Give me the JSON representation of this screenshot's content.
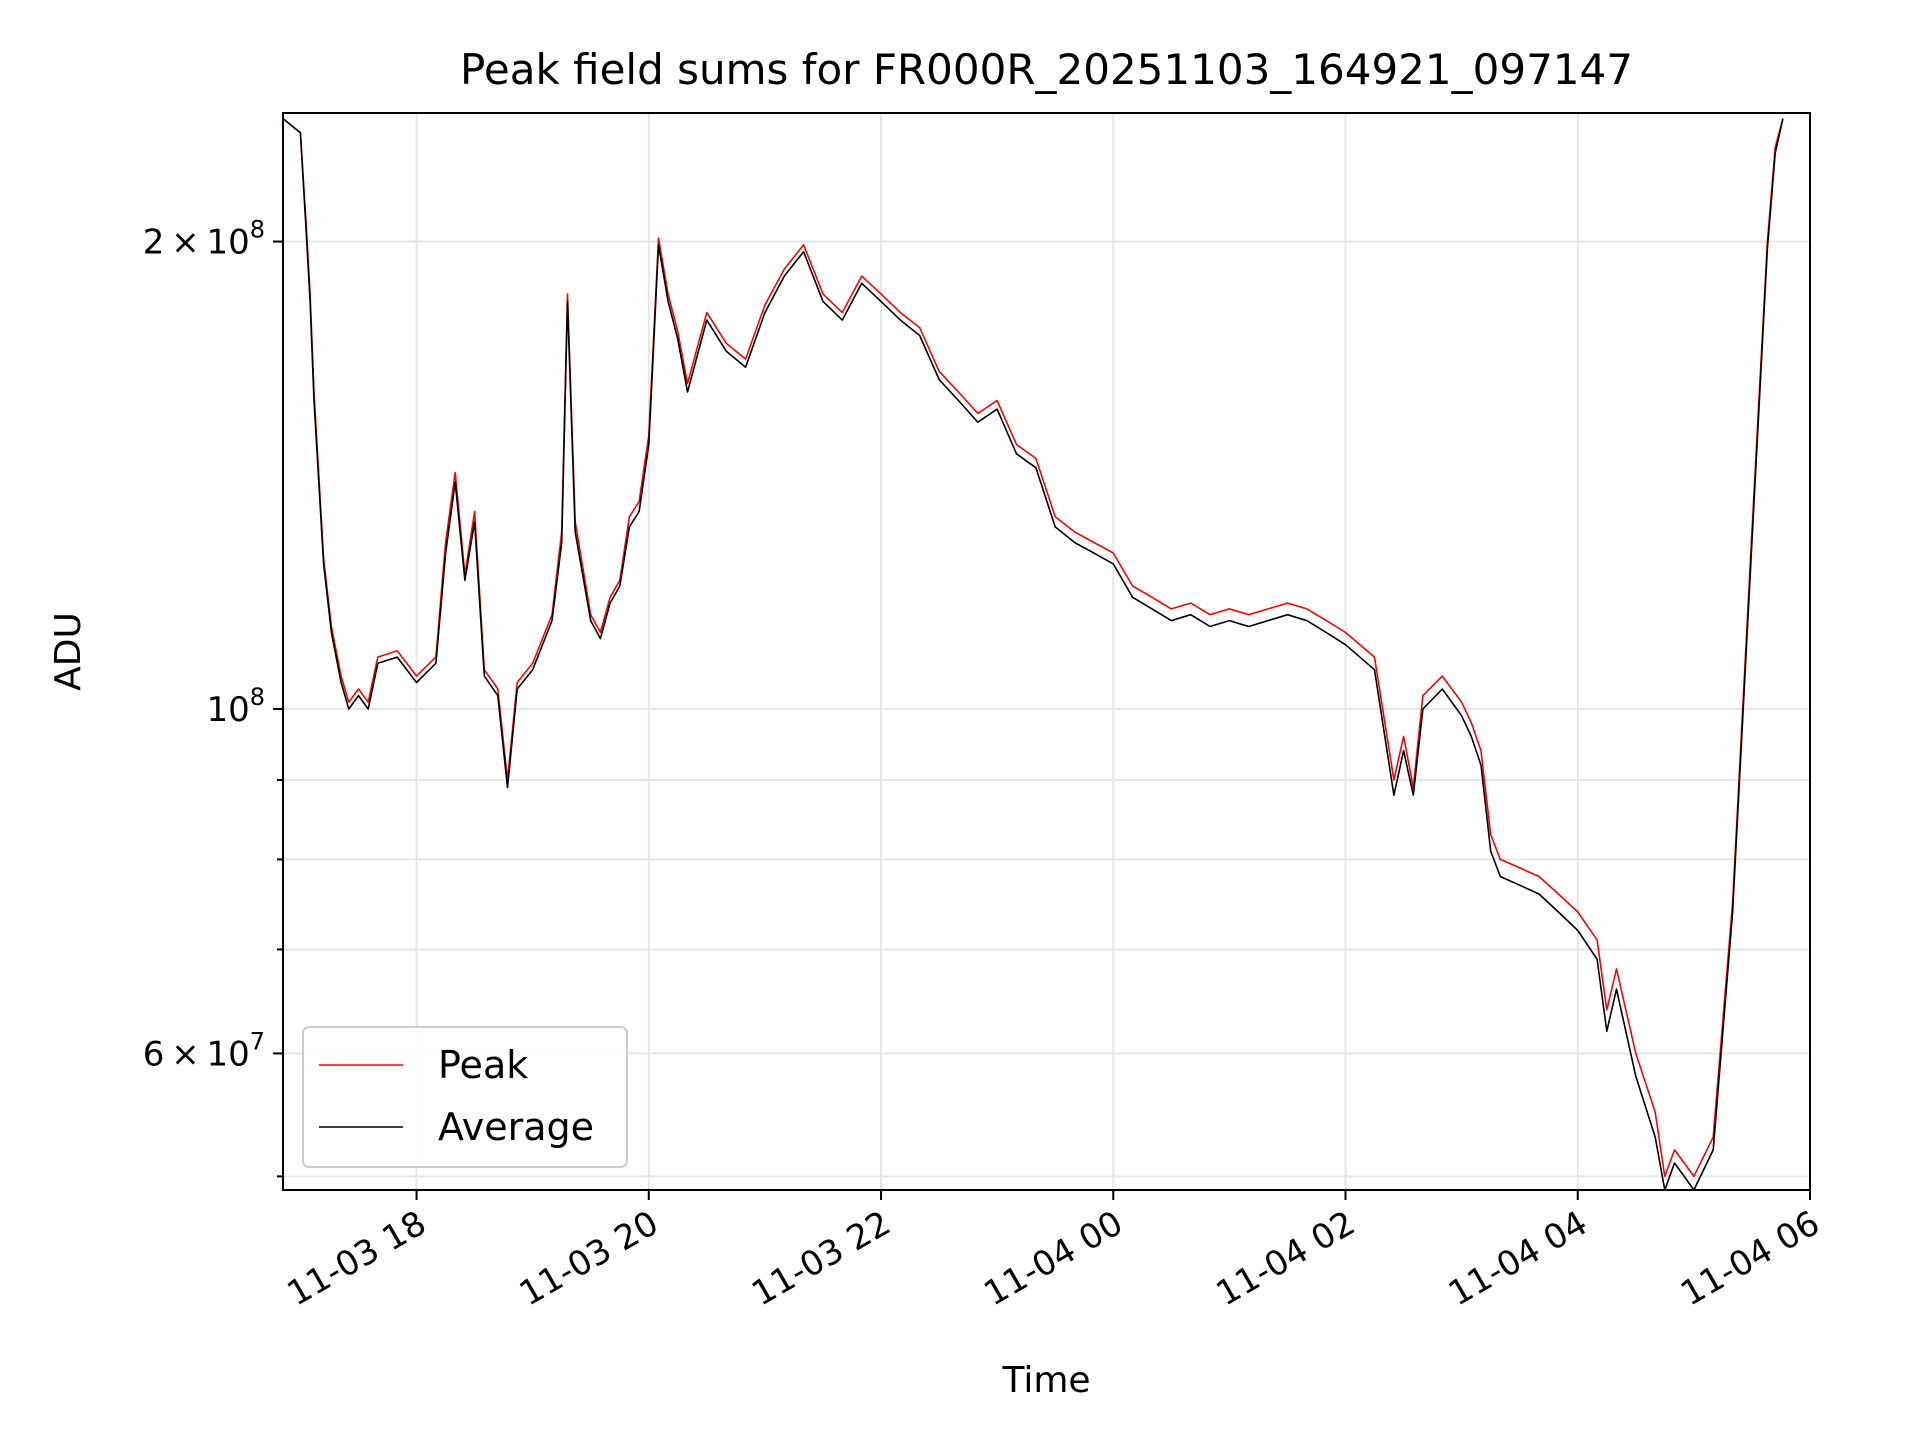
{
  "chart_data": {
    "type": "line",
    "title": "Peak field sums for FR000R_20251103_164921_097147",
    "xlabel": "Time",
    "ylabel": "ADU",
    "yscale": "log",
    "grid": true,
    "legend_position": "lower-left",
    "x_ticks": [
      "11-03 18",
      "11-03 20",
      "11-03 22",
      "11-04 00",
      "11-04 02",
      "11-04 04",
      "11-04 06"
    ],
    "y_major_ticks": [
      {
        "value": 200000000,
        "mantissa": "2",
        "base": "10",
        "exp": "8"
      },
      {
        "value": 100000000,
        "mantissa": "",
        "base": "10",
        "exp": "8"
      },
      {
        "value": 60000000,
        "mantissa": "6",
        "base": "10",
        "exp": "7"
      }
    ],
    "y_minor_ticks": [
      50000000,
      70000000,
      80000000,
      90000000
    ],
    "ylim": [
      49000000,
      242000000
    ],
    "xlim": [
      "2025-11-03 16:51",
      "2025-11-04 06:00"
    ],
    "series": [
      {
        "name": "Peak",
        "color": "#ff0000",
        "points": [
          [
            "2025-11-03 16:51",
            240000000
          ],
          [
            "2025-11-03 17:00",
            235000000
          ],
          [
            "2025-11-03 17:03",
            205000000
          ],
          [
            "2025-11-03 17:05",
            185000000
          ],
          [
            "2025-11-03 17:07",
            160000000
          ],
          [
            "2025-11-03 17:12",
            125000000
          ],
          [
            "2025-11-03 17:16",
            113000000
          ],
          [
            "2025-11-03 17:21",
            105000000
          ],
          [
            "2025-11-03 17:25",
            101000000
          ],
          [
            "2025-11-03 17:30",
            103000000
          ],
          [
            "2025-11-03 17:35",
            101000000
          ],
          [
            "2025-11-03 17:40",
            108000000
          ],
          [
            "2025-11-03 17:50",
            109000000
          ],
          [
            "2025-11-03 18:00",
            105000000
          ],
          [
            "2025-11-03 18:10",
            108000000
          ],
          [
            "2025-11-03 18:15",
            128000000
          ],
          [
            "2025-11-03 18:20",
            142000000
          ],
          [
            "2025-11-03 18:25",
            122000000
          ],
          [
            "2025-11-03 18:30",
            134000000
          ],
          [
            "2025-11-03 18:35",
            106000000
          ],
          [
            "2025-11-03 18:42",
            103000000
          ],
          [
            "2025-11-03 18:47",
            90000000
          ],
          [
            "2025-11-03 18:52",
            104000000
          ],
          [
            "2025-11-03 19:00",
            107000000
          ],
          [
            "2025-11-03 19:10",
            115000000
          ],
          [
            "2025-11-03 19:15",
            130000000
          ],
          [
            "2025-11-03 19:18",
            185000000
          ],
          [
            "2025-11-03 19:22",
            132000000
          ],
          [
            "2025-11-03 19:30",
            115000000
          ],
          [
            "2025-11-03 19:35",
            112000000
          ],
          [
            "2025-11-03 19:40",
            118000000
          ],
          [
            "2025-11-03 19:45",
            121000000
          ],
          [
            "2025-11-03 19:50",
            133000000
          ],
          [
            "2025-11-03 19:55",
            136000000
          ],
          [
            "2025-11-03 20:00",
            150000000
          ],
          [
            "2025-11-03 20:05",
            201000000
          ],
          [
            "2025-11-03 20:10",
            185000000
          ],
          [
            "2025-11-03 20:15",
            175000000
          ],
          [
            "2025-11-03 20:20",
            162000000
          ],
          [
            "2025-11-03 20:30",
            180000000
          ],
          [
            "2025-11-03 20:40",
            172000000
          ],
          [
            "2025-11-03 20:50",
            168000000
          ],
          [
            "2025-11-03 21:00",
            182000000
          ],
          [
            "2025-11-03 21:10",
            192000000
          ],
          [
            "2025-11-03 21:20",
            199000000
          ],
          [
            "2025-11-03 21:30",
            185000000
          ],
          [
            "2025-11-03 21:40",
            180000000
          ],
          [
            "2025-11-03 21:50",
            190000000
          ],
          [
            "2025-11-03 22:00",
            185000000
          ],
          [
            "2025-11-03 22:10",
            180000000
          ],
          [
            "2025-11-03 22:20",
            176000000
          ],
          [
            "2025-11-03 22:30",
            165000000
          ],
          [
            "2025-11-03 22:40",
            160000000
          ],
          [
            "2025-11-03 22:50",
            155000000
          ],
          [
            "2025-11-03 23:00",
            158000000
          ],
          [
            "2025-11-03 23:10",
            148000000
          ],
          [
            "2025-11-03 23:20",
            145000000
          ],
          [
            "2025-11-03 23:30",
            133000000
          ],
          [
            "2025-11-03 23:40",
            130000000
          ],
          [
            "2025-11-03 23:50",
            128000000
          ],
          [
            "2025-11-04 00:00",
            126000000
          ],
          [
            "2025-11-04 00:10",
            120000000
          ],
          [
            "2025-11-04 00:20",
            118000000
          ],
          [
            "2025-11-04 00:30",
            116000000
          ],
          [
            "2025-11-04 00:40",
            117000000
          ],
          [
            "2025-11-04 00:50",
            115000000
          ],
          [
            "2025-11-04 01:00",
            116000000
          ],
          [
            "2025-11-04 01:10",
            115000000
          ],
          [
            "2025-11-04 01:20",
            116000000
          ],
          [
            "2025-11-04 01:30",
            117000000
          ],
          [
            "2025-11-04 01:40",
            116000000
          ],
          [
            "2025-11-04 01:50",
            114000000
          ],
          [
            "2025-11-04 02:00",
            112000000
          ],
          [
            "2025-11-04 02:15",
            108000000
          ],
          [
            "2025-11-04 02:25",
            90000000
          ],
          [
            "2025-11-04 02:30",
            96000000
          ],
          [
            "2025-11-04 02:35",
            89000000
          ],
          [
            "2025-11-04 02:40",
            102000000
          ],
          [
            "2025-11-04 02:50",
            105000000
          ],
          [
            "2025-11-04 03:00",
            101000000
          ],
          [
            "2025-11-04 03:05",
            98000000
          ],
          [
            "2025-11-04 03:10",
            94000000
          ],
          [
            "2025-11-04 03:15",
            83000000
          ],
          [
            "2025-11-04 03:20",
            80000000
          ],
          [
            "2025-11-04 03:30",
            79000000
          ],
          [
            "2025-11-04 03:40",
            78000000
          ],
          [
            "2025-11-04 03:50",
            76000000
          ],
          [
            "2025-11-04 04:00",
            74000000
          ],
          [
            "2025-11-04 04:10",
            71000000
          ],
          [
            "2025-11-04 04:15",
            64000000
          ],
          [
            "2025-11-04 04:20",
            68000000
          ],
          [
            "2025-11-04 04:30",
            60000000
          ],
          [
            "2025-11-04 04:40",
            55000000
          ],
          [
            "2025-11-04 04:45",
            50000000
          ],
          [
            "2025-11-04 04:50",
            52000000
          ],
          [
            "2025-11-04 04:55",
            51000000
          ],
          [
            "2025-11-04 05:00",
            50000000
          ],
          [
            "2025-11-04 05:10",
            53000000
          ],
          [
            "2025-11-04 05:20",
            75000000
          ],
          [
            "2025-11-04 05:30",
            130000000
          ],
          [
            "2025-11-04 05:38",
            200000000
          ],
          [
            "2025-11-04 05:42",
            230000000
          ],
          [
            "2025-11-04 05:46",
            240000000
          ]
        ]
      },
      {
        "name": "Average",
        "color": "#000000",
        "points": [
          [
            "2025-11-03 16:51",
            240000000
          ],
          [
            "2025-11-03 17:00",
            235000000
          ],
          [
            "2025-11-03 17:03",
            203000000
          ],
          [
            "2025-11-03 17:05",
            183000000
          ],
          [
            "2025-11-03 17:07",
            158000000
          ],
          [
            "2025-11-03 17:12",
            124000000
          ],
          [
            "2025-11-03 17:16",
            112000000
          ],
          [
            "2025-11-03 17:21",
            104000000
          ],
          [
            "2025-11-03 17:25",
            100000000
          ],
          [
            "2025-11-03 17:30",
            102000000
          ],
          [
            "2025-11-03 17:35",
            100000000
          ],
          [
            "2025-11-03 17:40",
            107000000
          ],
          [
            "2025-11-03 17:50",
            108000000
          ],
          [
            "2025-11-03 18:00",
            104000000
          ],
          [
            "2025-11-03 18:10",
            107000000
          ],
          [
            "2025-11-03 18:15",
            126000000
          ],
          [
            "2025-11-03 18:20",
            140000000
          ],
          [
            "2025-11-03 18:25",
            121000000
          ],
          [
            "2025-11-03 18:30",
            132000000
          ],
          [
            "2025-11-03 18:35",
            105000000
          ],
          [
            "2025-11-03 18:42",
            102000000
          ],
          [
            "2025-11-03 18:47",
            89000000
          ],
          [
            "2025-11-03 18:52",
            103000000
          ],
          [
            "2025-11-03 19:00",
            106000000
          ],
          [
            "2025-11-03 19:10",
            114000000
          ],
          [
            "2025-11-03 19:15",
            128000000
          ],
          [
            "2025-11-03 19:18",
            183000000
          ],
          [
            "2025-11-03 19:22",
            130000000
          ],
          [
            "2025-11-03 19:30",
            114000000
          ],
          [
            "2025-11-03 19:35",
            111000000
          ],
          [
            "2025-11-03 19:40",
            117000000
          ],
          [
            "2025-11-03 19:45",
            120000000
          ],
          [
            "2025-11-03 19:50",
            131000000
          ],
          [
            "2025-11-03 19:55",
            134000000
          ],
          [
            "2025-11-03 20:00",
            148000000
          ],
          [
            "2025-11-03 20:05",
            199000000
          ],
          [
            "2025-11-03 20:10",
            183000000
          ],
          [
            "2025-11-03 20:15",
            173000000
          ],
          [
            "2025-11-03 20:20",
            160000000
          ],
          [
            "2025-11-03 20:30",
            178000000
          ],
          [
            "2025-11-03 20:40",
            170000000
          ],
          [
            "2025-11-03 20:50",
            166000000
          ],
          [
            "2025-11-03 21:00",
            180000000
          ],
          [
            "2025-11-03 21:10",
            190000000
          ],
          [
            "2025-11-03 21:20",
            197000000
          ],
          [
            "2025-11-03 21:30",
            183000000
          ],
          [
            "2025-11-03 21:40",
            178000000
          ],
          [
            "2025-11-03 21:50",
            188000000
          ],
          [
            "2025-11-03 22:00",
            183000000
          ],
          [
            "2025-11-03 22:10",
            178000000
          ],
          [
            "2025-11-03 22:20",
            174000000
          ],
          [
            "2025-11-03 22:30",
            163000000
          ],
          [
            "2025-11-03 22:40",
            158000000
          ],
          [
            "2025-11-03 22:50",
            153000000
          ],
          [
            "2025-11-03 23:00",
            156000000
          ],
          [
            "2025-11-03 23:10",
            146000000
          ],
          [
            "2025-11-03 23:20",
            143000000
          ],
          [
            "2025-11-03 23:30",
            131000000
          ],
          [
            "2025-11-03 23:40",
            128000000
          ],
          [
            "2025-11-03 23:50",
            126000000
          ],
          [
            "2025-11-04 00:00",
            124000000
          ],
          [
            "2025-11-04 00:10",
            118000000
          ],
          [
            "2025-11-04 00:20",
            116000000
          ],
          [
            "2025-11-04 00:30",
            114000000
          ],
          [
            "2025-11-04 00:40",
            115000000
          ],
          [
            "2025-11-04 00:50",
            113000000
          ],
          [
            "2025-11-04 01:00",
            114000000
          ],
          [
            "2025-11-04 01:10",
            113000000
          ],
          [
            "2025-11-04 01:20",
            114000000
          ],
          [
            "2025-11-04 01:30",
            115000000
          ],
          [
            "2025-11-04 01:40",
            114000000
          ],
          [
            "2025-11-04 01:50",
            112000000
          ],
          [
            "2025-11-04 02:00",
            110000000
          ],
          [
            "2025-11-04 02:15",
            106000000
          ],
          [
            "2025-11-04 02:25",
            88000000
          ],
          [
            "2025-11-04 02:30",
            94000000
          ],
          [
            "2025-11-04 02:35",
            88000000
          ],
          [
            "2025-11-04 02:40",
            100000000
          ],
          [
            "2025-11-04 02:50",
            103000000
          ],
          [
            "2025-11-04 03:00",
            99000000
          ],
          [
            "2025-11-04 03:05",
            96000000
          ],
          [
            "2025-11-04 03:10",
            92000000
          ],
          [
            "2025-11-04 03:15",
            81000000
          ],
          [
            "2025-11-04 03:20",
            78000000
          ],
          [
            "2025-11-04 03:30",
            77000000
          ],
          [
            "2025-11-04 03:40",
            76000000
          ],
          [
            "2025-11-04 03:50",
            74000000
          ],
          [
            "2025-11-04 04:00",
            72000000
          ],
          [
            "2025-11-04 04:10",
            69000000
          ],
          [
            "2025-11-04 04:15",
            62000000
          ],
          [
            "2025-11-04 04:20",
            66000000
          ],
          [
            "2025-11-04 04:30",
            58000000
          ],
          [
            "2025-11-04 04:40",
            53000000
          ],
          [
            "2025-11-04 04:45",
            49000000
          ],
          [
            "2025-11-04 04:50",
            51000000
          ],
          [
            "2025-11-04 04:55",
            50000000
          ],
          [
            "2025-11-04 05:00",
            49000000
          ],
          [
            "2025-11-04 05:10",
            52000000
          ],
          [
            "2025-11-04 05:20",
            74000000
          ],
          [
            "2025-11-04 05:30",
            128000000
          ],
          [
            "2025-11-04 05:38",
            198000000
          ],
          [
            "2025-11-04 05:42",
            228000000
          ],
          [
            "2025-11-04 05:46",
            240000000
          ]
        ]
      }
    ]
  }
}
